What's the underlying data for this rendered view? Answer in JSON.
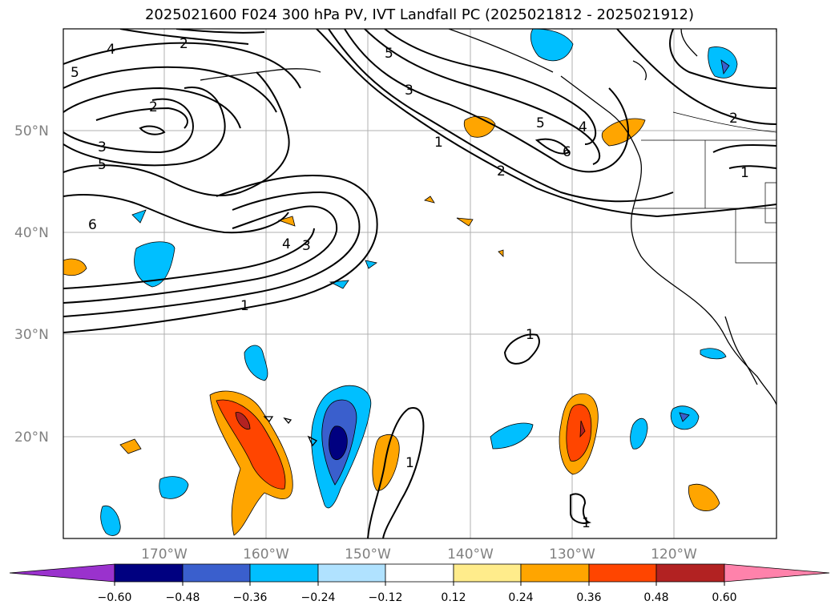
{
  "title": "2025021600 F024 300 hPa PV, IVT Landfall PC (2025021812 - 2025021912)",
  "map": {
    "lat_ticks": [
      "50°N",
      "40°N",
      "30°N",
      "20°N"
    ],
    "lon_ticks": [
      "170°W",
      "160°W",
      "150°W",
      "140°W",
      "130°W",
      "120°W"
    ],
    "contour_labels": [
      "4",
      "2",
      "5",
      "3",
      "5",
      "2",
      "3",
      "6",
      "4",
      "3",
      "1",
      "1",
      "5",
      "2",
      "6",
      "4",
      "5",
      "2",
      "1",
      "1",
      "1",
      "1"
    ]
  },
  "colorbar": {
    "ticks": [
      "−0.60",
      "−0.48",
      "−0.36",
      "−0.24",
      "−0.12",
      "0.12",
      "0.24",
      "0.36",
      "0.48",
      "0.60"
    ],
    "colors": [
      "#9a32cd",
      "#000080",
      "#3a5fcd",
      "#00bfff",
      "#b0e2ff",
      "#ffffff",
      "#ffec8b",
      "#ffa500",
      "#ff4500",
      "#b22222",
      "#ff82ab"
    ]
  },
  "colors": {
    "land_line": "#000000",
    "grid": "#b0b0b0",
    "tick_text": "#808080"
  }
}
